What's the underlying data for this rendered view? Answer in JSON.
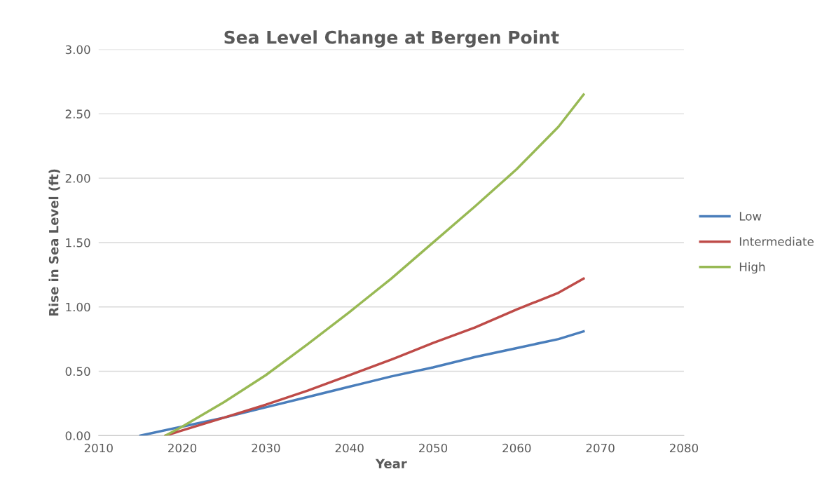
{
  "chart_data": {
    "type": "line",
    "title": "Sea Level Change at Bergen Point",
    "xlabel": "Year",
    "ylabel": "Rise in Sea Level (ft)",
    "series": [
      {
        "name": "Low",
        "color": "#4a7ebb",
        "x": [
          2015,
          2020,
          2025,
          2030,
          2035,
          2040,
          2045,
          2050,
          2055,
          2060,
          2065,
          2068
        ],
        "values": [
          0.0,
          0.07,
          0.14,
          0.22,
          0.3,
          0.38,
          0.46,
          0.53,
          0.61,
          0.68,
          0.75,
          0.81
        ]
      },
      {
        "name": "Intermediate",
        "color": "#be4b48",
        "x": [
          2018,
          2020,
          2025,
          2030,
          2035,
          2040,
          2045,
          2050,
          2055,
          2060,
          2065,
          2068
        ],
        "values": [
          0.0,
          0.04,
          0.14,
          0.24,
          0.35,
          0.47,
          0.59,
          0.72,
          0.84,
          0.98,
          1.11,
          1.22
        ]
      },
      {
        "name": "High",
        "color": "#98b954",
        "x": [
          2018,
          2020,
          2025,
          2030,
          2035,
          2040,
          2045,
          2050,
          2055,
          2060,
          2065,
          2068
        ],
        "values": [
          0.0,
          0.07,
          0.26,
          0.47,
          0.71,
          0.96,
          1.22,
          1.5,
          1.78,
          2.07,
          2.4,
          2.65
        ]
      }
    ],
    "xlim": [
      2010,
      2080
    ],
    "xticks": [
      2010,
      2020,
      2030,
      2040,
      2050,
      2060,
      2070,
      2080
    ],
    "ylim": [
      0,
      3
    ],
    "yticks": [
      {
        "value": 0,
        "label": "0.00"
      },
      {
        "value": 0.5,
        "label": "0.50"
      },
      {
        "value": 1,
        "label": "1.00"
      },
      {
        "value": 1.5,
        "label": "1.50"
      },
      {
        "value": 2,
        "label": "2.00"
      },
      {
        "value": 2.5,
        "label": "2.50"
      },
      {
        "value": 3,
        "label": "3.00"
      }
    ],
    "grid": "y",
    "legend": "right",
    "marker": "none",
    "line_style": "solid"
  }
}
